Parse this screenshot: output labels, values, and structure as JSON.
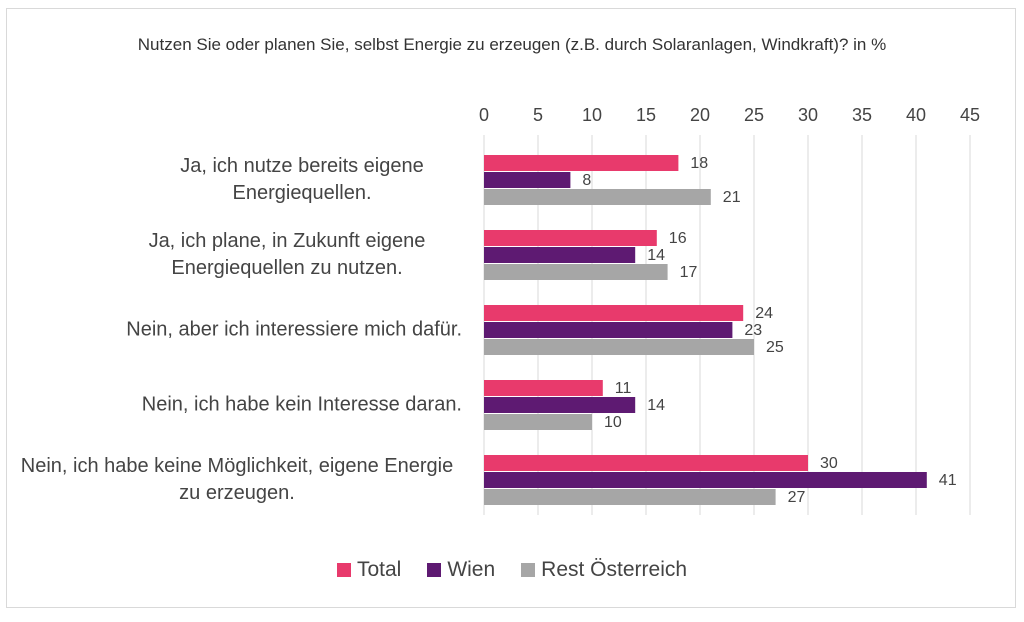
{
  "chart_data": {
    "type": "bar",
    "orientation": "horizontal",
    "title": "Nutzen Sie oder planen Sie, selbst Energie zu erzeugen (z.B. durch Solaranlagen, Windkraft)? in %",
    "categories": [
      "Ja, ich nutze bereits eigene Energiequellen.",
      "Ja, ich plane, in Zukunft eigene Energiequellen zu nutzen.",
      "Nein, aber ich interessiere mich dafür.",
      "Nein, ich habe kein Interesse daran.",
      "Nein, ich habe keine Möglichkeit, eigene Energie zu erzeugen."
    ],
    "series": [
      {
        "name": "Total",
        "color": "#e83a6c",
        "values": [
          18,
          16,
          24,
          11,
          30
        ]
      },
      {
        "name": "Wien",
        "color": "#5e1a72",
        "values": [
          8,
          14,
          23,
          14,
          41
        ]
      },
      {
        "name": "Rest Österreich",
        "color": "#a6a6a6",
        "values": [
          21,
          17,
          25,
          10,
          27
        ]
      }
    ],
    "xlim": [
      0,
      45
    ],
    "xticks": [
      0,
      5,
      10,
      15,
      20,
      25,
      30,
      35,
      40,
      45
    ],
    "grid": true,
    "legend": "bottom"
  }
}
